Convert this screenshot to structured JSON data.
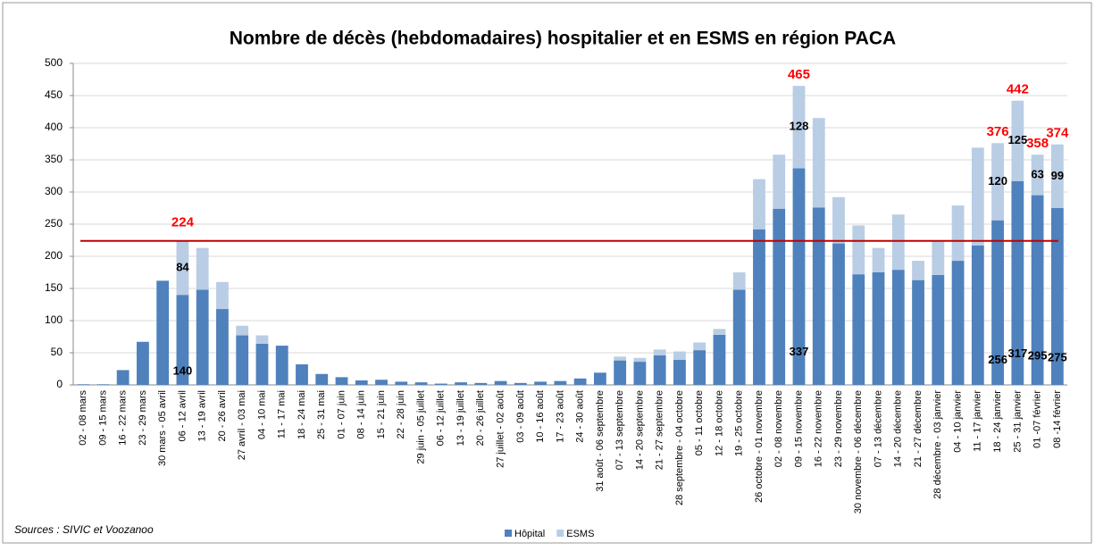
{
  "chart_data": {
    "type": "stacked-bar",
    "title": "Nombre de décès (hebdomadaires) hospitalier et en ESMS en région PACA",
    "source": "Sources : SIVIC et Voozanoo",
    "categories": [
      "02 - 08 mars",
      "09 - 15 mars",
      "16 - 22 mars",
      "23 - 29 mars",
      "30 mars - 05 avril",
      "06 - 12 avril",
      "13 - 19 avril",
      "20 - 26 avril",
      "27 avril - 03 mai",
      "04 - 10 mai",
      "11 - 17 mai",
      "18 - 24 mai",
      "25 - 31 mai",
      "01 - 07 juin",
      "08 - 14 juin",
      "15 - 21 juin",
      "22 - 28 juin",
      "29 juin - 05 juillet",
      "06 - 12 juillet",
      "13 - 19 juillet",
      "20 - 26 juillet",
      "27 juillet - 02 août",
      "03 - 09 août",
      "10 - 16 août",
      "17 - 23 août",
      "24 - 30 août",
      "31 août - 06 septembre",
      "07 - 13 septembre",
      "14 - 20 septembre",
      "21 - 27 septembre",
      "28 septembre - 04 octobre",
      "05 - 11 octobre",
      "12 - 18 octobre",
      "19 - 25 octobre",
      "26 octobre - 01 novembre",
      "02 - 08 novembre",
      "09 - 15 novembre",
      "16 - 22 novembre",
      "23 - 29 novembre",
      "30 novembre - 06 décembre",
      "07 - 13 décembre",
      "14 - 20 décembre",
      "21 - 27 décembre",
      "28 décembre - 03 janvier",
      "04 - 10 janvier",
      "11 - 17 janvier",
      "18 - 24 janvier",
      "25 - 31 janvier",
      "01 -07 février",
      "08 -14 février"
    ],
    "series": [
      {
        "name": "Hôpital",
        "color": "#4f81bd",
        "values": [
          1,
          1,
          23,
          67,
          162,
          140,
          148,
          118,
          77,
          64,
          61,
          32,
          17,
          12,
          7,
          8,
          5,
          4,
          2,
          4,
          3,
          6,
          3,
          5,
          6,
          10,
          19,
          38,
          36,
          46,
          39,
          54,
          78,
          148,
          242,
          274,
          337,
          276,
          220,
          172,
          175,
          179,
          163,
          171,
          193,
          217,
          256,
          317,
          295,
          275
        ],
        "value_labels": [
          null,
          null,
          null,
          null,
          null,
          "140",
          null,
          null,
          null,
          null,
          null,
          null,
          null,
          null,
          null,
          null,
          null,
          null,
          null,
          null,
          null,
          null,
          null,
          null,
          null,
          null,
          null,
          null,
          null,
          null,
          null,
          null,
          null,
          null,
          null,
          null,
          "337",
          null,
          null,
          null,
          null,
          null,
          null,
          null,
          null,
          null,
          "256",
          "317",
          "295",
          "275"
        ]
      },
      {
        "name": "ESMS",
        "color": "#b9cde5",
        "values": [
          0,
          0,
          0,
          0,
          0,
          84,
          65,
          42,
          15,
          13,
          0,
          0,
          0,
          0,
          0,
          0,
          0,
          0,
          0,
          0,
          0,
          0,
          0,
          0,
          0,
          0,
          0,
          6,
          6,
          9,
          13,
          12,
          9,
          27,
          78,
          84,
          128,
          139,
          72,
          76,
          38,
          86,
          30,
          52,
          86,
          152,
          120,
          125,
          63,
          99
        ],
        "value_labels": [
          null,
          null,
          null,
          null,
          null,
          "84",
          null,
          null,
          null,
          null,
          null,
          null,
          null,
          null,
          null,
          null,
          null,
          null,
          null,
          null,
          null,
          null,
          null,
          null,
          null,
          null,
          null,
          null,
          null,
          null,
          null,
          null,
          null,
          null,
          null,
          null,
          "128",
          null,
          null,
          null,
          null,
          null,
          null,
          null,
          null,
          null,
          "120",
          "125",
          "63",
          "99"
        ]
      }
    ],
    "total_labels": [
      null,
      null,
      null,
      null,
      null,
      null,
      null,
      null,
      null,
      null,
      null,
      null,
      null,
      null,
      null,
      null,
      null,
      null,
      null,
      null,
      null,
      null,
      null,
      null,
      null,
      null,
      null,
      null,
      null,
      null,
      null,
      null,
      null,
      null,
      null,
      null,
      "465",
      null,
      null,
      null,
      null,
      null,
      null,
      null,
      null,
      null,
      "376",
      "442",
      "358",
      "374"
    ],
    "reference_line": {
      "value": 224,
      "label": "224",
      "color": "#c00000"
    },
    "ylim": [
      0,
      500
    ],
    "yticks": [
      0,
      50,
      100,
      150,
      200,
      250,
      300,
      350,
      400,
      450,
      500
    ],
    "grid": true,
    "legend": "bottom"
  }
}
